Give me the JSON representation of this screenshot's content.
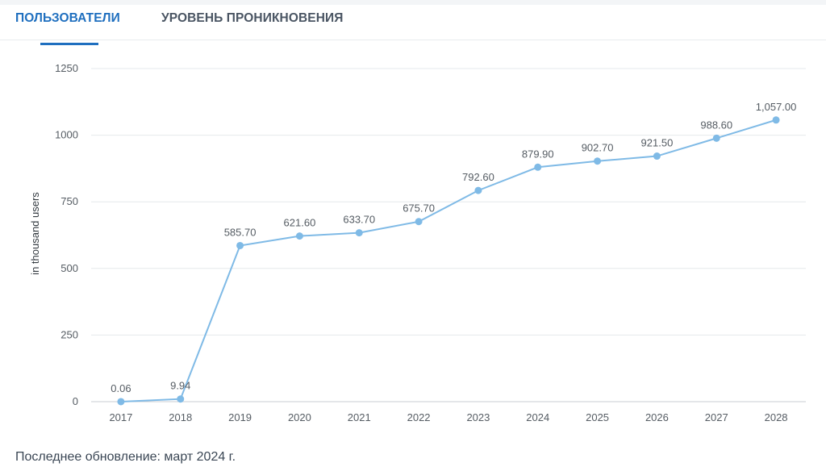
{
  "tabs": [
    {
      "label": "ПОЛЬЗОВАТЕЛИ",
      "active": true
    },
    {
      "label": "УРОВЕНЬ ПРОНИКНОВЕНИЯ",
      "active": false
    }
  ],
  "footer": {
    "note": "Последнее обновление: март 2024 г."
  },
  "colors": {
    "accent": "#1f6fbf",
    "series": "#7fbae6",
    "grid": "#e6e9ec"
  },
  "chart_data": {
    "type": "line",
    "title": "",
    "xlabel": "",
    "ylabel": "in thousand users",
    "categories": [
      "2017",
      "2018",
      "2019",
      "2020",
      "2021",
      "2022",
      "2023",
      "2024",
      "2025",
      "2026",
      "2027",
      "2028"
    ],
    "series": [
      {
        "values": [
          0.06,
          9.94,
          585.7,
          621.6,
          633.7,
          675.7,
          792.6,
          879.9,
          902.7,
          921.5,
          988.6,
          1057.0
        ]
      }
    ],
    "data_labels": [
      "0.06",
      "9.94",
      "585.70",
      "621.60",
      "633.70",
      "675.70",
      "792.60",
      "879.90",
      "902.70",
      "921.50",
      "988.60",
      "1,057.00"
    ],
    "yticks": [
      0,
      250,
      500,
      750,
      1000,
      1250
    ],
    "ylim": [
      0,
      1250
    ],
    "grid": true
  }
}
